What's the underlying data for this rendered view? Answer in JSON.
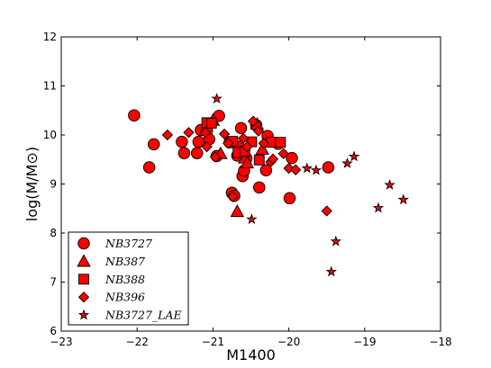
{
  "chart_data": {
    "type": "scatter",
    "xlabel": "M1400",
    "ylabel": "log(M/M⊙)",
    "xlim": [
      -23,
      -18
    ],
    "ylim": [
      6,
      12
    ],
    "x_ticks": [
      -23,
      -22,
      -21,
      -20,
      -19,
      -18
    ],
    "y_ticks": [
      6,
      7,
      8,
      9,
      10,
      11,
      12
    ],
    "x_tick_labels": [
      "−23",
      "−22",
      "−21",
      "−20",
      "−19",
      "−18"
    ],
    "y_tick_labels": [
      "6",
      "7",
      "8",
      "9",
      "10",
      "11",
      "12"
    ],
    "grid": false,
    "legend_position": "lower-left",
    "marker_color": "#ff0000",
    "series": [
      {
        "name": "NB3727",
        "marker": "circle",
        "points": [
          [
            -22.04,
            10.4
          ],
          [
            -21.84,
            9.34
          ],
          [
            -21.78,
            9.81
          ],
          [
            -21.41,
            9.86
          ],
          [
            -21.38,
            9.63
          ],
          [
            -21.21,
            9.63
          ],
          [
            -21.19,
            9.86
          ],
          [
            -21.16,
            10.1
          ],
          [
            -21.08,
            10.09
          ],
          [
            -21.05,
            9.91
          ],
          [
            -20.95,
            9.57
          ],
          [
            -20.92,
            10.39
          ],
          [
            -20.78,
            9.85
          ],
          [
            -20.75,
            8.82
          ],
          [
            -20.72,
            8.76
          ],
          [
            -20.68,
            9.58
          ],
          [
            -20.66,
            9.76
          ],
          [
            -20.63,
            10.14
          ],
          [
            -20.61,
            9.16
          ],
          [
            -20.59,
            9.27
          ],
          [
            -20.56,
            9.52
          ],
          [
            -20.43,
            10.2
          ],
          [
            -20.39,
            8.93
          ],
          [
            -20.3,
            9.28
          ],
          [
            -20.28,
            9.98
          ],
          [
            -20.14,
            9.82
          ],
          [
            -19.99,
            8.71
          ],
          [
            -19.96,
            9.53
          ],
          [
            -19.48,
            9.34
          ]
        ]
      },
      {
        "name": "NB387",
        "marker": "triangle",
        "points": [
          [
            -21.0,
            10.3
          ],
          [
            -20.9,
            9.62
          ],
          [
            -20.68,
            8.44
          ],
          [
            -20.58,
            9.53
          ],
          [
            -20.55,
            9.43
          ],
          [
            -20.42,
            10.22
          ],
          [
            -20.35,
            9.71
          ]
        ]
      },
      {
        "name": "NB388",
        "marker": "square",
        "points": [
          [
            -21.08,
            10.25
          ],
          [
            -21.02,
            10.24
          ],
          [
            -20.74,
            9.87
          ],
          [
            -20.67,
            9.64
          ],
          [
            -20.58,
            9.67
          ],
          [
            -20.49,
            9.86
          ],
          [
            -20.39,
            9.49
          ],
          [
            -20.23,
            9.85
          ],
          [
            -20.11,
            9.85
          ]
        ]
      },
      {
        "name": "NB396",
        "marker": "diamond",
        "points": [
          [
            -21.6,
            10.0
          ],
          [
            -21.32,
            10.05
          ],
          [
            -21.1,
            10.05
          ],
          [
            -21.08,
            9.76
          ],
          [
            -20.97,
            9.55
          ],
          [
            -20.85,
            10.02
          ],
          [
            -20.8,
            9.83
          ],
          [
            -20.74,
            8.74
          ],
          [
            -20.6,
            9.93
          ],
          [
            -20.55,
            9.76
          ],
          [
            -20.47,
            10.28
          ],
          [
            -20.4,
            10.08
          ],
          [
            -20.33,
            9.83
          ],
          [
            -20.24,
            9.45
          ],
          [
            -20.21,
            9.51
          ],
          [
            -20.07,
            9.62
          ],
          [
            -20.0,
            9.32
          ],
          [
            -19.91,
            9.29
          ],
          [
            -19.5,
            8.45
          ]
        ]
      },
      {
        "name": "NB3727_LAE",
        "marker": "star",
        "points": [
          [
            -20.95,
            10.74
          ],
          [
            -20.49,
            8.28
          ],
          [
            -19.76,
            9.32
          ],
          [
            -19.64,
            9.28
          ],
          [
            -19.44,
            7.21
          ],
          [
            -19.38,
            7.83
          ],
          [
            -19.23,
            9.42
          ],
          [
            -19.14,
            9.56
          ],
          [
            -18.82,
            8.51
          ],
          [
            -18.67,
            8.98
          ],
          [
            -18.49,
            8.68
          ]
        ]
      }
    ]
  }
}
